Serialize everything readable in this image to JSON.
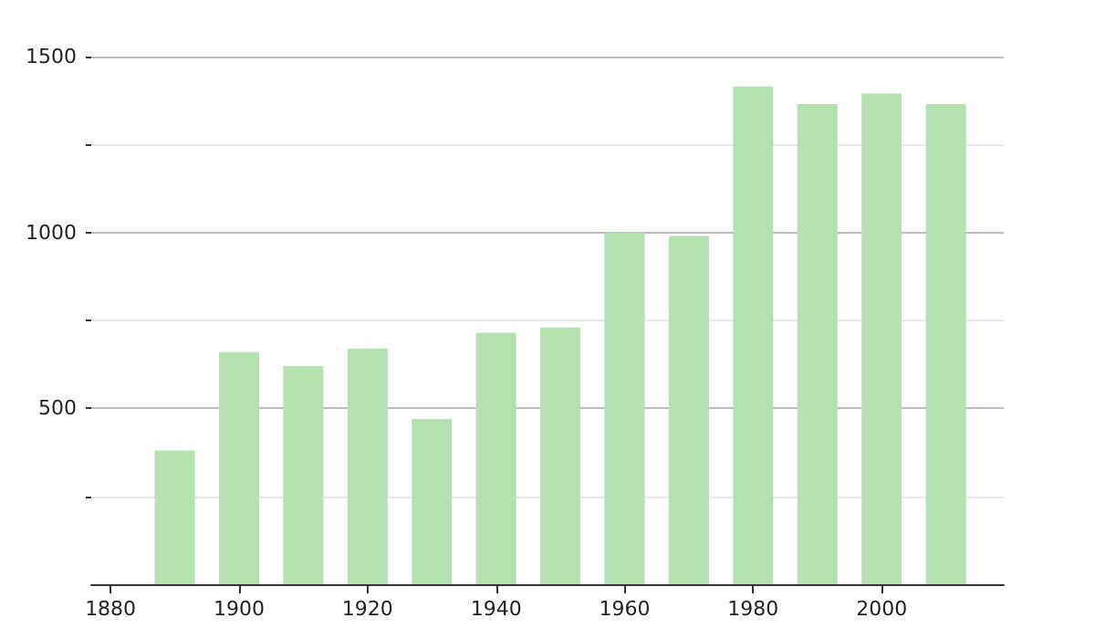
{
  "chart_data": {
    "type": "bar",
    "x": [
      1890,
      1900,
      1910,
      1920,
      1930,
      1940,
      1950,
      1960,
      1970,
      1980,
      1990,
      2000,
      2010
    ],
    "values": [
      380,
      660,
      620,
      670,
      470,
      715,
      730,
      1000,
      990,
      1415,
      1365,
      1395,
      1365
    ],
    "color": "#b3e2b0",
    "xlim": [
      1877,
      2019
    ],
    "xticks": [
      1880,
      1900,
      1920,
      1940,
      1960,
      1980,
      2000
    ],
    "ylim": [
      0,
      1500
    ],
    "yticks": [
      {
        "value": 250,
        "label": null
      },
      500,
      {
        "value": 750,
        "label": null
      },
      1000,
      {
        "value": 1250,
        "label": null
      },
      1500
    ],
    "grid": "y"
  }
}
